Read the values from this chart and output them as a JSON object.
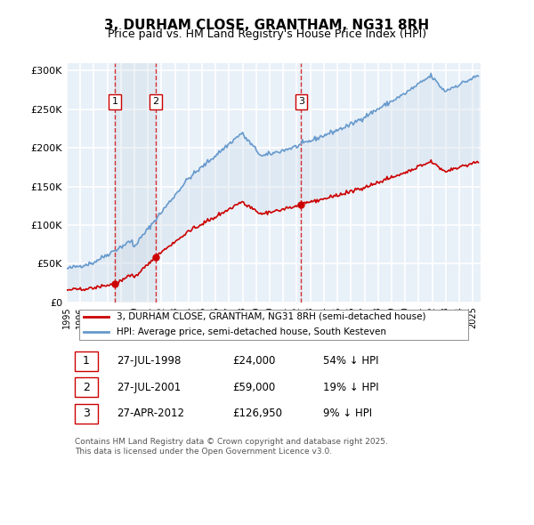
{
  "title": "3, DURHAM CLOSE, GRANTHAM, NG31 8RH",
  "subtitle": "Price paid vs. HM Land Registry's House Price Index (HPI)",
  "ylabel": "",
  "ylim": [
    0,
    310000
  ],
  "yticks": [
    0,
    50000,
    100000,
    150000,
    200000,
    250000,
    300000
  ],
  "ytick_labels": [
    "£0",
    "£50K",
    "£100K",
    "£150K",
    "£200K",
    "£250K",
    "£300K"
  ],
  "background_color": "#e8f0f8",
  "plot_bg": "#e8f0f8",
  "grid_color": "#ffffff",
  "sale_dates": [
    "1998-07-27",
    "2001-07-27",
    "2012-04-27"
  ],
  "sale_prices": [
    24000,
    59000,
    126950
  ],
  "sale_labels": [
    "1",
    "2",
    "3"
  ],
  "legend_property": "3, DURHAM CLOSE, GRANTHAM, NG31 8RH (semi-detached house)",
  "legend_hpi": "HPI: Average price, semi-detached house, South Kesteven",
  "table_rows": [
    [
      "1",
      "27-JUL-1998",
      "£24,000",
      "54% ↓ HPI"
    ],
    [
      "2",
      "27-JUL-2001",
      "£59,000",
      "19% ↓ HPI"
    ],
    [
      "3",
      "27-APR-2012",
      "£126,950",
      "9% ↓ HPI"
    ]
  ],
  "footer": "Contains HM Land Registry data © Crown copyright and database right 2025.\nThis data is licensed under the Open Government Licence v3.0.",
  "property_color": "#cc0000",
  "hpi_color": "#6699cc",
  "vline_color": "#cc0000",
  "shade_color": "#ccd9e8"
}
